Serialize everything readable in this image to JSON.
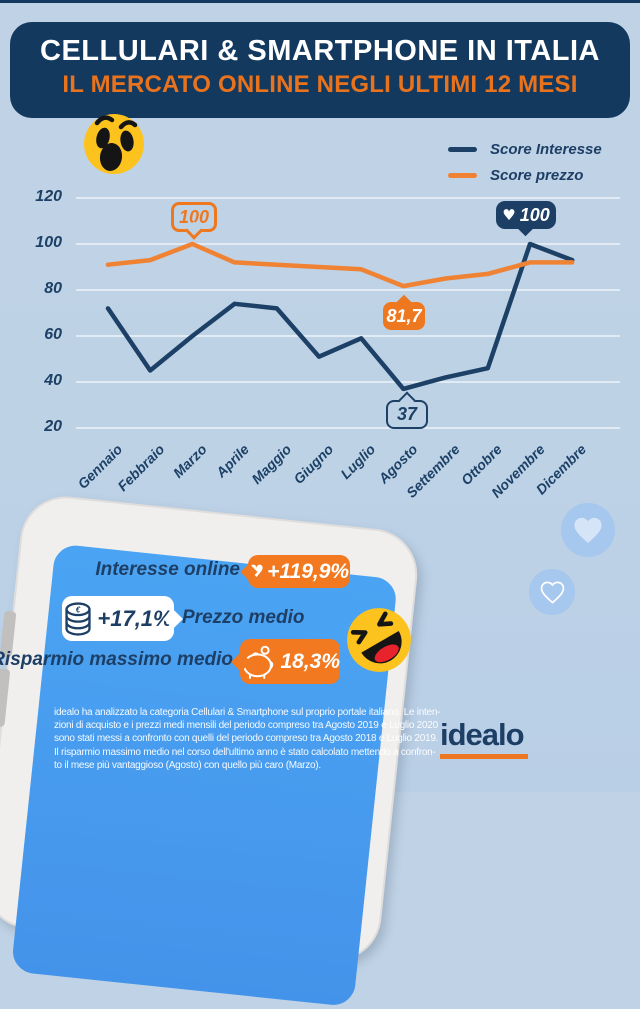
{
  "page": {
    "bg": "#bed2e6",
    "navy": "#14395f",
    "orange": "#ed7622",
    "screen_blue": "#4aa0f0"
  },
  "header": {
    "title": "CELLULARI & SMARTPHONE IN ITALIA",
    "subtitle": "IL MERCATO ONLINE NEGLI ULTIMI 12 MESI"
  },
  "chart_data": {
    "type": "line",
    "categories": [
      "Gennaio",
      "Febbraio",
      "Marzo",
      "Aprile",
      "Maggio",
      "Giugno",
      "Luglio",
      "Agosto",
      "Settembre",
      "Ottobre",
      "Novembre",
      "Dicembre"
    ],
    "series": [
      {
        "name": "Score Interesse",
        "color": "#1d4166",
        "values": [
          72,
          45,
          60,
          74,
          72,
          51,
          59,
          37,
          42,
          46,
          100,
          93
        ]
      },
      {
        "name": "Score prezzo",
        "color": "#f08233",
        "values": [
          91,
          93,
          100,
          92,
          91,
          90,
          89,
          81.7,
          85,
          87,
          92,
          92
        ]
      }
    ],
    "y_ticks": [
      120,
      100,
      80,
      60,
      40,
      20
    ],
    "ylim": [
      20,
      120
    ],
    "grid": true,
    "legend_position": "top-right",
    "annotations": [
      {
        "series": "Score prezzo",
        "month": "Marzo",
        "label": "100",
        "style": "orange-outline"
      },
      {
        "series": "Score prezzo",
        "month": "Agosto",
        "label": "81,7",
        "style": "orange-filled"
      },
      {
        "series": "Score Interesse",
        "month": "Agosto",
        "label": "37",
        "style": "navy-outline"
      },
      {
        "series": "Score Interesse",
        "month": "Novembre",
        "label": "100",
        "style": "navy-filled",
        "icon": "heart"
      }
    ]
  },
  "phone": {
    "rows": [
      {
        "label": "Interesse online",
        "value": "+119,9%",
        "icon": "heart-icon"
      },
      {
        "label": "Prezzo medio",
        "value": "+17,1%",
        "icon": "coins-icon"
      },
      {
        "label": "Risparmio massimo medio",
        "value": "18,3%",
        "icon": "piggy-bank-icon"
      }
    ],
    "footnote_lines": [
      "idealo ha analizzato la categoria Cellulari & Smartphone sul proprio portale italiano. Le inten-",
      "zioni di acquisto e i prezzi medi mensili del periodo compreso tra Agosto 2019 e Luglio 2020",
      "sono stati messi a confronto con quelli del periodo compreso tra Agosto 2018 e Luglio 2019.",
      "Il risparmio massimo medio nel corso dell'ultimo anno è stato calcolato mettendo a confron-",
      "to il mese più vantaggioso (Agosto) con quello più caro (Marzo)."
    ]
  },
  "logo": {
    "text": "idealo"
  },
  "hearts": {
    "glyph": "♥"
  }
}
